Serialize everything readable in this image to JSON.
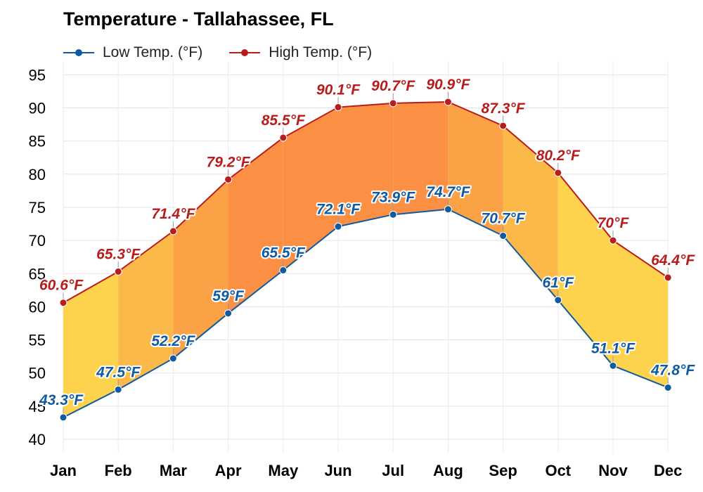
{
  "chart_data": {
    "type": "line",
    "title": "Temperature - Tallahassee, FL",
    "xlabel": "",
    "ylabel": "",
    "categories": [
      "Jan",
      "Feb",
      "Mar",
      "Apr",
      "May",
      "Jun",
      "Jul",
      "Aug",
      "Sep",
      "Oct",
      "Nov",
      "Dec"
    ],
    "series": [
      {
        "name": "Low Temp. (°F)",
        "color": "#0f5aa0",
        "values": [
          43.3,
          47.5,
          52.2,
          59,
          65.5,
          72.1,
          73.9,
          74.7,
          70.7,
          61,
          51.1,
          47.8
        ],
        "labels": [
          "43.3°F",
          "47.5°F",
          "52.2°F",
          "59°F",
          "65.5°F",
          "72.1°F",
          "73.9°F",
          "74.7°F",
          "70.7°F",
          "61°F",
          "51.1°F",
          "47.8°F"
        ]
      },
      {
        "name": "High Temp. (°F)",
        "color": "#b91c1c",
        "values": [
          60.6,
          65.3,
          71.4,
          79.2,
          85.5,
          90.1,
          90.7,
          90.9,
          87.3,
          80.2,
          70,
          64.4
        ],
        "labels": [
          "60.6°F",
          "65.3°F",
          "71.4°F",
          "79.2°F",
          "85.5°F",
          "90.1°F",
          "90.7°F",
          "90.9°F",
          "87.3°F",
          "80.2°F",
          "70°F",
          "64.4°F"
        ]
      }
    ],
    "band_colors": [
      "#fdd34d",
      "#fbb94a",
      "#fba246",
      "#fb8f44",
      "#fb8f44",
      "#fb8f44",
      "#fb8f44",
      "#fba246",
      "#fbb94a",
      "#fdd34d",
      "#fdd34d"
    ],
    "yticks": [
      40,
      45,
      50,
      55,
      60,
      65,
      70,
      75,
      80,
      85,
      90,
      95
    ],
    "ylim": [
      38,
      97
    ],
    "grid": true,
    "legend_position": "top-left"
  }
}
